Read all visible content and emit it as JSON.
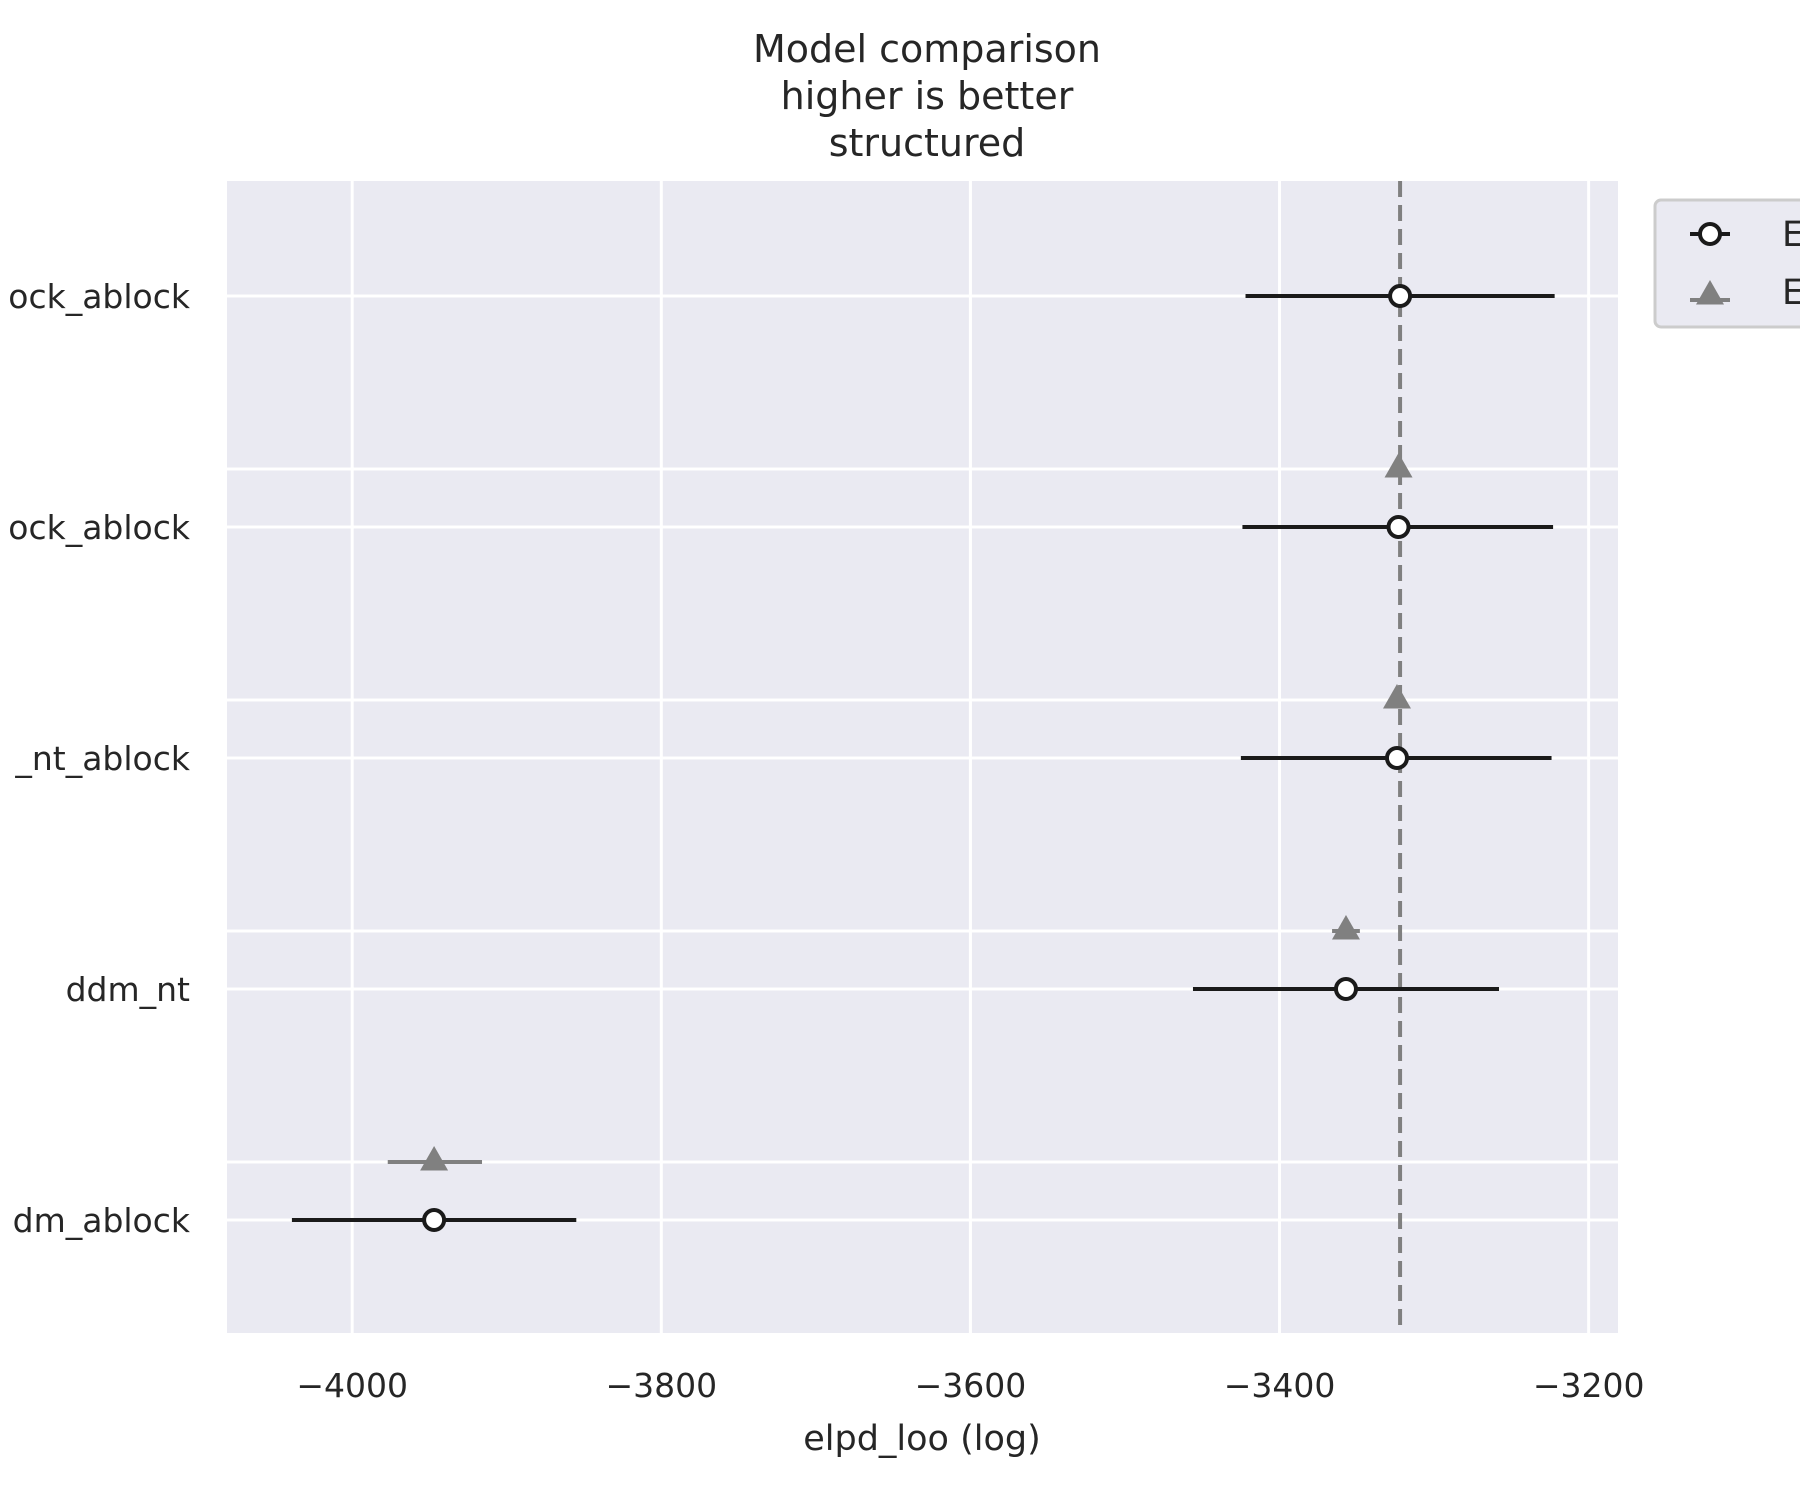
{
  "chart_data": {
    "type": "scatter",
    "title_lines": [
      "Model comparison",
      "higher is better",
      "structured"
    ],
    "xlabel": "elpd_loo (log)",
    "ylabel": "",
    "xlim": [
      -4081,
      -3181
    ],
    "xticks": [
      {
        "value": -4000,
        "label": "−4000"
      },
      {
        "value": -3800,
        "label": "−3800"
      },
      {
        "value": -3600,
        "label": "−3600"
      },
      {
        "value": -3400,
        "label": "−3400"
      },
      {
        "value": -3200,
        "label": "−3200"
      }
    ],
    "grid": true,
    "legend_placement": "outside-top-right",
    "legend": [
      {
        "marker": "open-circle",
        "label": "E"
      },
      {
        "marker": "triangle",
        "label": "E"
      }
    ],
    "reference_line": {
      "value": -3322,
      "style": "dashed",
      "color": "#808080"
    },
    "models": [
      {
        "label": "ock_ablock",
        "elpd": -3322,
        "elpd_low": -3422,
        "elpd_high": -3222,
        "diff": null,
        "diff_low": null,
        "diff_high": null
      },
      {
        "label": "ock_ablock",
        "elpd": -3323,
        "elpd_low": -3424,
        "elpd_high": -3223,
        "diff": -3323,
        "diff_low": -3323,
        "diff_high": -3323
      },
      {
        "label": "_nt_ablock",
        "elpd": -3324,
        "elpd_low": -3425,
        "elpd_high": -3224,
        "diff": -3324,
        "diff_low": -3324,
        "diff_high": -3324
      },
      {
        "label": "ddm_nt",
        "elpd": -3357,
        "elpd_low": -3456,
        "elpd_high": -3258,
        "diff": -3357,
        "diff_low": -3366,
        "diff_high": -3348
      },
      {
        "label": "dm_ablock",
        "elpd": -3947,
        "elpd_low": -4039,
        "elpd_high": -3855,
        "diff": -3947,
        "diff_low": -3977,
        "diff_high": -3916
      }
    ],
    "colors": {
      "background": "#eaeaf2",
      "grid": "#ffffff",
      "primary": "#1a1a1a",
      "secondary": "#808080"
    }
  }
}
